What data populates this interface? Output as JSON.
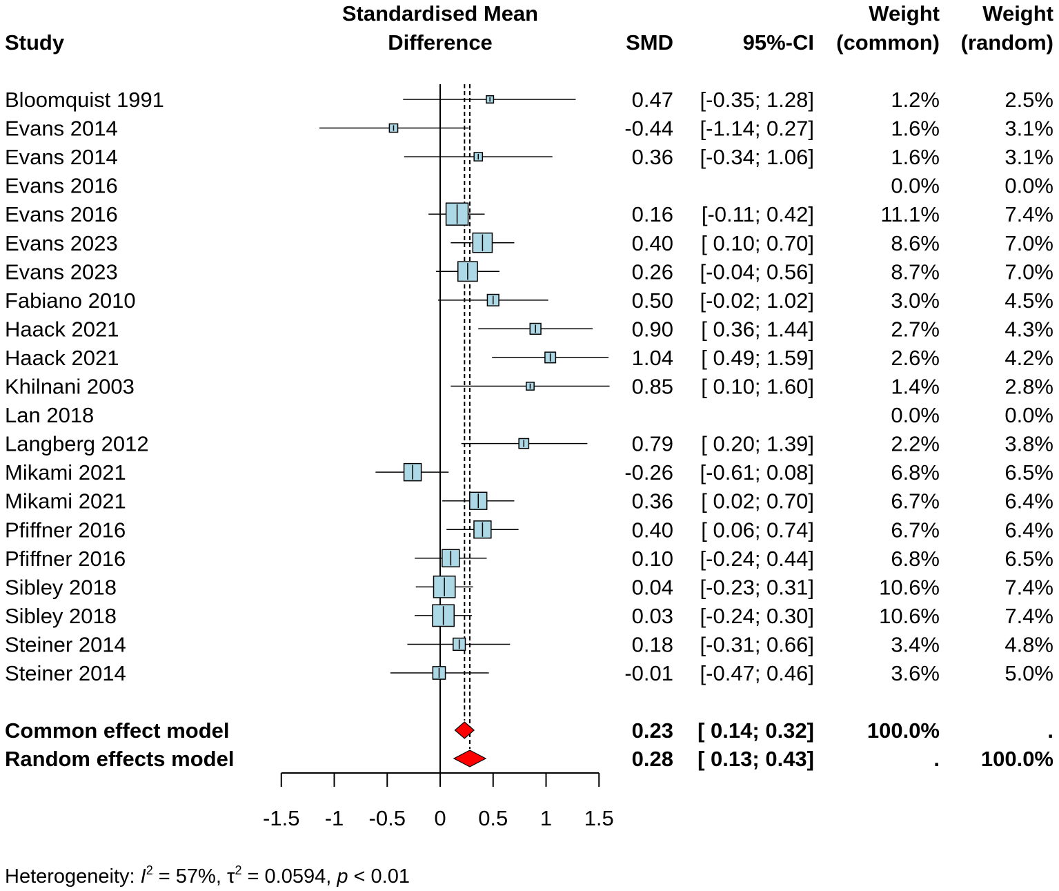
{
  "chart_data": {
    "type": "forest",
    "header": {
      "study": "Study",
      "plot_title_line1": "Standardised Mean",
      "plot_title_line2": "Difference",
      "smd": "SMD",
      "ci": "95%-CI",
      "weight_common_line1": "Weight",
      "weight_common_line2": "(common)",
      "weight_random_line1": "Weight",
      "weight_random_line2": "(random)"
    },
    "studies": [
      {
        "study": "Bloomquist 1991",
        "smd": 0.47,
        "lower": -0.35,
        "upper": 1.28,
        "smd_text": "0.47",
        "ci_text": "[-0.35; 1.28]",
        "w_common": "1.2%",
        "w_random": "2.5%",
        "w": 1.2
      },
      {
        "study": "Evans 2014",
        "smd": -0.44,
        "lower": -1.14,
        "upper": 0.27,
        "smd_text": "-0.44",
        "ci_text": "[-1.14; 0.27]",
        "w_common": "1.6%",
        "w_random": "3.1%",
        "w": 1.6
      },
      {
        "study": "Evans 2014",
        "smd": 0.36,
        "lower": -0.34,
        "upper": 1.06,
        "smd_text": "0.36",
        "ci_text": "[-0.34; 1.06]",
        "w_common": "1.6%",
        "w_random": "3.1%",
        "w": 1.6
      },
      {
        "study": "Evans 2016",
        "smd": null,
        "lower": null,
        "upper": null,
        "smd_text": "",
        "ci_text": "",
        "w_common": "0.0%",
        "w_random": "0.0%",
        "w": 0
      },
      {
        "study": "Evans 2016",
        "smd": 0.16,
        "lower": -0.11,
        "upper": 0.42,
        "smd_text": "0.16",
        "ci_text": "[-0.11; 0.42]",
        "w_common": "11.1%",
        "w_random": "7.4%",
        "w": 11.1
      },
      {
        "study": "Evans 2023",
        "smd": 0.4,
        "lower": 0.1,
        "upper": 0.7,
        "smd_text": "0.40",
        "ci_text": "[ 0.10; 0.70]",
        "w_common": "8.6%",
        "w_random": "7.0%",
        "w": 8.6
      },
      {
        "study": "Evans 2023",
        "smd": 0.26,
        "lower": -0.04,
        "upper": 0.56,
        "smd_text": "0.26",
        "ci_text": "[-0.04; 0.56]",
        "w_common": "8.7%",
        "w_random": "7.0%",
        "w": 8.7
      },
      {
        "study": "Fabiano 2010",
        "smd": 0.5,
        "lower": -0.02,
        "upper": 1.02,
        "smd_text": "0.50",
        "ci_text": "[-0.02; 1.02]",
        "w_common": "3.0%",
        "w_random": "4.5%",
        "w": 3.0
      },
      {
        "study": "Haack 2021",
        "smd": 0.9,
        "lower": 0.36,
        "upper": 1.44,
        "smd_text": "0.90",
        "ci_text": "[ 0.36; 1.44]",
        "w_common": "2.7%",
        "w_random": "4.3%",
        "w": 2.7
      },
      {
        "study": "Haack 2021",
        "smd": 1.04,
        "lower": 0.49,
        "upper": 1.59,
        "smd_text": "1.04",
        "ci_text": "[ 0.49; 1.59]",
        "w_common": "2.6%",
        "w_random": "4.2%",
        "w": 2.6
      },
      {
        "study": "Khilnani 2003",
        "smd": 0.85,
        "lower": 0.1,
        "upper": 1.6,
        "smd_text": "0.85",
        "ci_text": "[ 0.10; 1.60]",
        "w_common": "1.4%",
        "w_random": "2.8%",
        "w": 1.4
      },
      {
        "study": "Lan 2018",
        "smd": null,
        "lower": null,
        "upper": null,
        "smd_text": "",
        "ci_text": "",
        "w_common": "0.0%",
        "w_random": "0.0%",
        "w": 0
      },
      {
        "study": "Langberg 2012",
        "smd": 0.79,
        "lower": 0.2,
        "upper": 1.39,
        "smd_text": "0.79",
        "ci_text": "[ 0.20; 1.39]",
        "w_common": "2.2%",
        "w_random": "3.8%",
        "w": 2.2
      },
      {
        "study": "Mikami 2021",
        "smd": -0.26,
        "lower": -0.61,
        "upper": 0.08,
        "smd_text": "-0.26",
        "ci_text": "[-0.61; 0.08]",
        "w_common": "6.8%",
        "w_random": "6.5%",
        "w": 6.8
      },
      {
        "study": "Mikami 2021",
        "smd": 0.36,
        "lower": 0.02,
        "upper": 0.7,
        "smd_text": "0.36",
        "ci_text": "[ 0.02; 0.70]",
        "w_common": "6.7%",
        "w_random": "6.4%",
        "w": 6.7
      },
      {
        "study": "Pfiffner 2016",
        "smd": 0.4,
        "lower": 0.06,
        "upper": 0.74,
        "smd_text": "0.40",
        "ci_text": "[ 0.06; 0.74]",
        "w_common": "6.7%",
        "w_random": "6.4%",
        "w": 6.7
      },
      {
        "study": "Pfiffner 2016",
        "smd": 0.1,
        "lower": -0.24,
        "upper": 0.44,
        "smd_text": "0.10",
        "ci_text": "[-0.24; 0.44]",
        "w_common": "6.8%",
        "w_random": "6.5%",
        "w": 6.8
      },
      {
        "study": "Sibley 2018",
        "smd": 0.04,
        "lower": -0.23,
        "upper": 0.31,
        "smd_text": "0.04",
        "ci_text": "[-0.23; 0.31]",
        "w_common": "10.6%",
        "w_random": "7.4%",
        "w": 10.6
      },
      {
        "study": "Sibley 2018",
        "smd": 0.03,
        "lower": -0.24,
        "upper": 0.3,
        "smd_text": "0.03",
        "ci_text": "[-0.24; 0.30]",
        "w_common": "10.6%",
        "w_random": "7.4%",
        "w": 10.6
      },
      {
        "study": "Steiner 2014",
        "smd": 0.18,
        "lower": -0.31,
        "upper": 0.66,
        "smd_text": "0.18",
        "ci_text": "[-0.31; 0.66]",
        "w_common": "3.4%",
        "w_random": "4.8%",
        "w": 3.4
      },
      {
        "study": "Steiner 2014",
        "smd": -0.01,
        "lower": -0.47,
        "upper": 0.46,
        "smd_text": "-0.01",
        "ci_text": "[-0.47; 0.46]",
        "w_common": "3.6%",
        "w_random": "5.0%",
        "w": 3.6
      }
    ],
    "models": [
      {
        "label": "Common effect model",
        "smd": 0.23,
        "lower": 0.14,
        "upper": 0.32,
        "smd_text": "0.23",
        "ci_text": "[ 0.14; 0.32]",
        "w_common": "100.0%",
        "w_random": "."
      },
      {
        "label": "Random effects model",
        "smd": 0.28,
        "lower": 0.13,
        "upper": 0.43,
        "smd_text": "0.28",
        "ci_text": "[ 0.13; 0.43]",
        "w_common": ".",
        "w_random": "100.0%"
      }
    ],
    "xaxis": {
      "range": [
        -1.5,
        1.5
      ],
      "ticks": [
        -1.5,
        -1,
        -0.5,
        0,
        0.5,
        1,
        1.5
      ],
      "tick_labels": [
        "-1.5",
        "-1",
        "-0.5",
        "0",
        "0.5",
        "1",
        "1.5"
      ]
    },
    "heterogeneity": {
      "prefix": "Heterogeneity: ",
      "i2_symbol": "I",
      "i2_text": " = 57%, ",
      "tau2_symbol": "τ",
      "tau2_text": " = 0.0594, ",
      "p_symbol": "p",
      "p_text": " < 0.01",
      "sup": "2"
    },
    "colors": {
      "box": "#add8e6",
      "diamond": "#ff0000",
      "line": "#000000"
    }
  }
}
